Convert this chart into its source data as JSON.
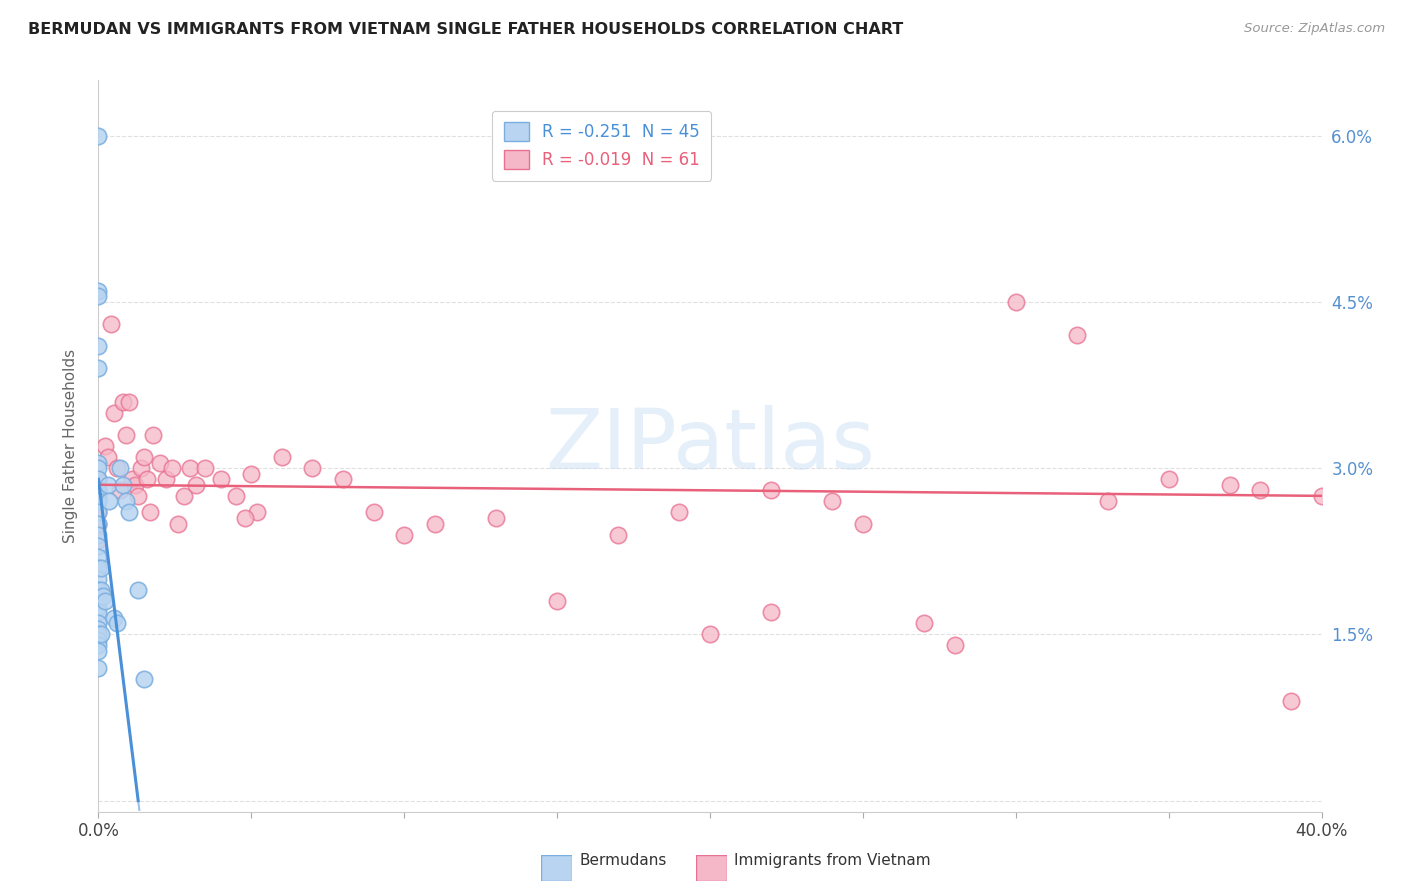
{
  "title": "BERMUDAN VS IMMIGRANTS FROM VIETNAM SINGLE FATHER HOUSEHOLDS CORRELATION CHART",
  "source": "Source: ZipAtlas.com",
  "ylabel": "Single Father Households",
  "ytick_values": [
    0.0,
    1.5,
    3.0,
    4.5,
    6.0
  ],
  "ytick_labels": [
    "",
    "1.5%",
    "3.0%",
    "4.5%",
    "6.0%"
  ],
  "xlim": [
    0.0,
    40.0
  ],
  "ylim": [
    -0.1,
    6.5
  ],
  "legend_label1": "R = -0.251  N = 45",
  "legend_label2": "R = -0.019  N = 61",
  "watermark_text": "ZIPatlas",
  "bermudans_x": [
    0.0,
    0.0,
    0.0,
    0.0,
    0.0,
    0.0,
    0.0,
    0.0,
    0.0,
    0.0,
    0.0,
    0.0,
    0.0,
    0.0,
    0.0,
    0.0,
    0.0,
    0.0,
    0.0,
    0.0,
    0.0,
    0.0,
    0.0,
    0.0,
    0.0,
    0.0,
    0.0,
    0.0,
    0.0,
    0.0,
    0.1,
    0.1,
    0.1,
    0.15,
    0.2,
    0.3,
    0.35,
    0.5,
    0.6,
    0.7,
    0.8,
    0.9,
    1.0,
    1.3,
    1.5
  ],
  "bermudans_y": [
    6.0,
    4.6,
    4.55,
    4.1,
    3.9,
    3.05,
    3.0,
    2.9,
    2.8,
    2.75,
    2.7,
    2.6,
    2.5,
    2.4,
    2.3,
    2.2,
    2.1,
    2.0,
    1.9,
    1.85,
    1.8,
    1.75,
    1.7,
    1.6,
    1.55,
    1.5,
    1.45,
    1.4,
    1.35,
    1.2,
    2.1,
    1.9,
    1.5,
    1.85,
    1.8,
    2.85,
    2.7,
    1.65,
    1.6,
    3.0,
    2.85,
    2.7,
    2.6,
    1.9,
    1.1
  ],
  "vietnam_x": [
    0.0,
    0.0,
    0.0,
    0.0,
    0.0,
    0.0,
    0.2,
    0.3,
    0.4,
    0.5,
    0.6,
    0.7,
    0.8,
    0.9,
    1.0,
    1.1,
    1.2,
    1.3,
    1.4,
    1.5,
    1.6,
    1.7,
    1.8,
    2.0,
    2.2,
    2.4,
    2.6,
    2.8,
    3.0,
    3.2,
    3.5,
    4.0,
    4.5,
    5.0,
    6.0,
    7.0,
    8.0,
    9.0,
    10.0,
    11.0,
    13.0,
    15.0,
    17.0,
    19.0,
    20.0,
    22.0,
    24.0,
    25.0,
    27.0,
    28.0,
    30.0,
    32.0,
    33.0,
    35.0,
    37.0,
    38.0,
    39.0,
    40.0,
    22.0,
    5.2,
    4.8
  ],
  "vietnam_y": [
    2.9,
    2.8,
    2.7,
    2.6,
    2.5,
    2.35,
    3.2,
    3.1,
    4.3,
    3.5,
    3.0,
    2.8,
    3.6,
    3.3,
    3.6,
    2.9,
    2.85,
    2.75,
    3.0,
    3.1,
    2.9,
    2.6,
    3.3,
    3.05,
    2.9,
    3.0,
    2.5,
    2.75,
    3.0,
    2.85,
    3.0,
    2.9,
    2.75,
    2.95,
    3.1,
    3.0,
    2.9,
    2.6,
    2.4,
    2.5,
    2.55,
    1.8,
    2.4,
    2.6,
    1.5,
    2.8,
    2.7,
    2.5,
    1.6,
    1.4,
    4.5,
    4.2,
    2.7,
    2.9,
    2.85,
    2.8,
    0.9,
    2.75,
    1.7,
    2.6,
    2.55
  ],
  "bermudan_line_color": "#4a90d9",
  "vietnam_line_color": "#e8607a",
  "bermudan_scatter_facecolor": "#b8d4f0",
  "bermudan_scatter_edgecolor": "#7aaee0",
  "vietnam_scatter_facecolor": "#f5b8c8",
  "vietnam_scatter_edgecolor": "#e87090",
  "background_color": "#ffffff",
  "grid_color": "#e0e0e0",
  "bermudan_reg_x0": 0.0,
  "bermudan_reg_y0": 2.9,
  "bermudan_reg_x1": 1.3,
  "bermudan_reg_y1": 0.0,
  "bermudan_dashed_x1": 2.0,
  "vietnam_reg_y_start": 2.85,
  "vietnam_reg_y_end": 2.75
}
